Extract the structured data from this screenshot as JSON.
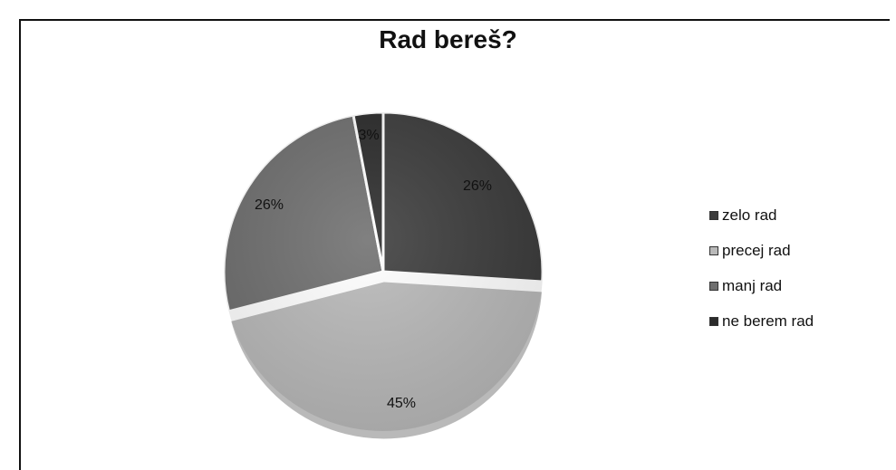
{
  "chart_data": {
    "type": "pie",
    "title": "Rad bereš?",
    "slices": [
      {
        "label": "zelo rad",
        "value": 26,
        "data_label": "26%",
        "color": "#3c3c3c"
      },
      {
        "label": "precej rad",
        "value": 45,
        "data_label": "45%",
        "color": "#b9b9b9"
      },
      {
        "label": "manj rad",
        "value": 26,
        "data_label": "26%",
        "color": "#6f6f6f"
      },
      {
        "label": "ne berem rad",
        "value": 3,
        "data_label": "3%",
        "color": "#2b2b2b"
      }
    ],
    "legend": {
      "placement": "right",
      "entries": [
        "zelo rad",
        "precej rad",
        "manj rad",
        "ne berem rad"
      ]
    },
    "grid": false
  }
}
